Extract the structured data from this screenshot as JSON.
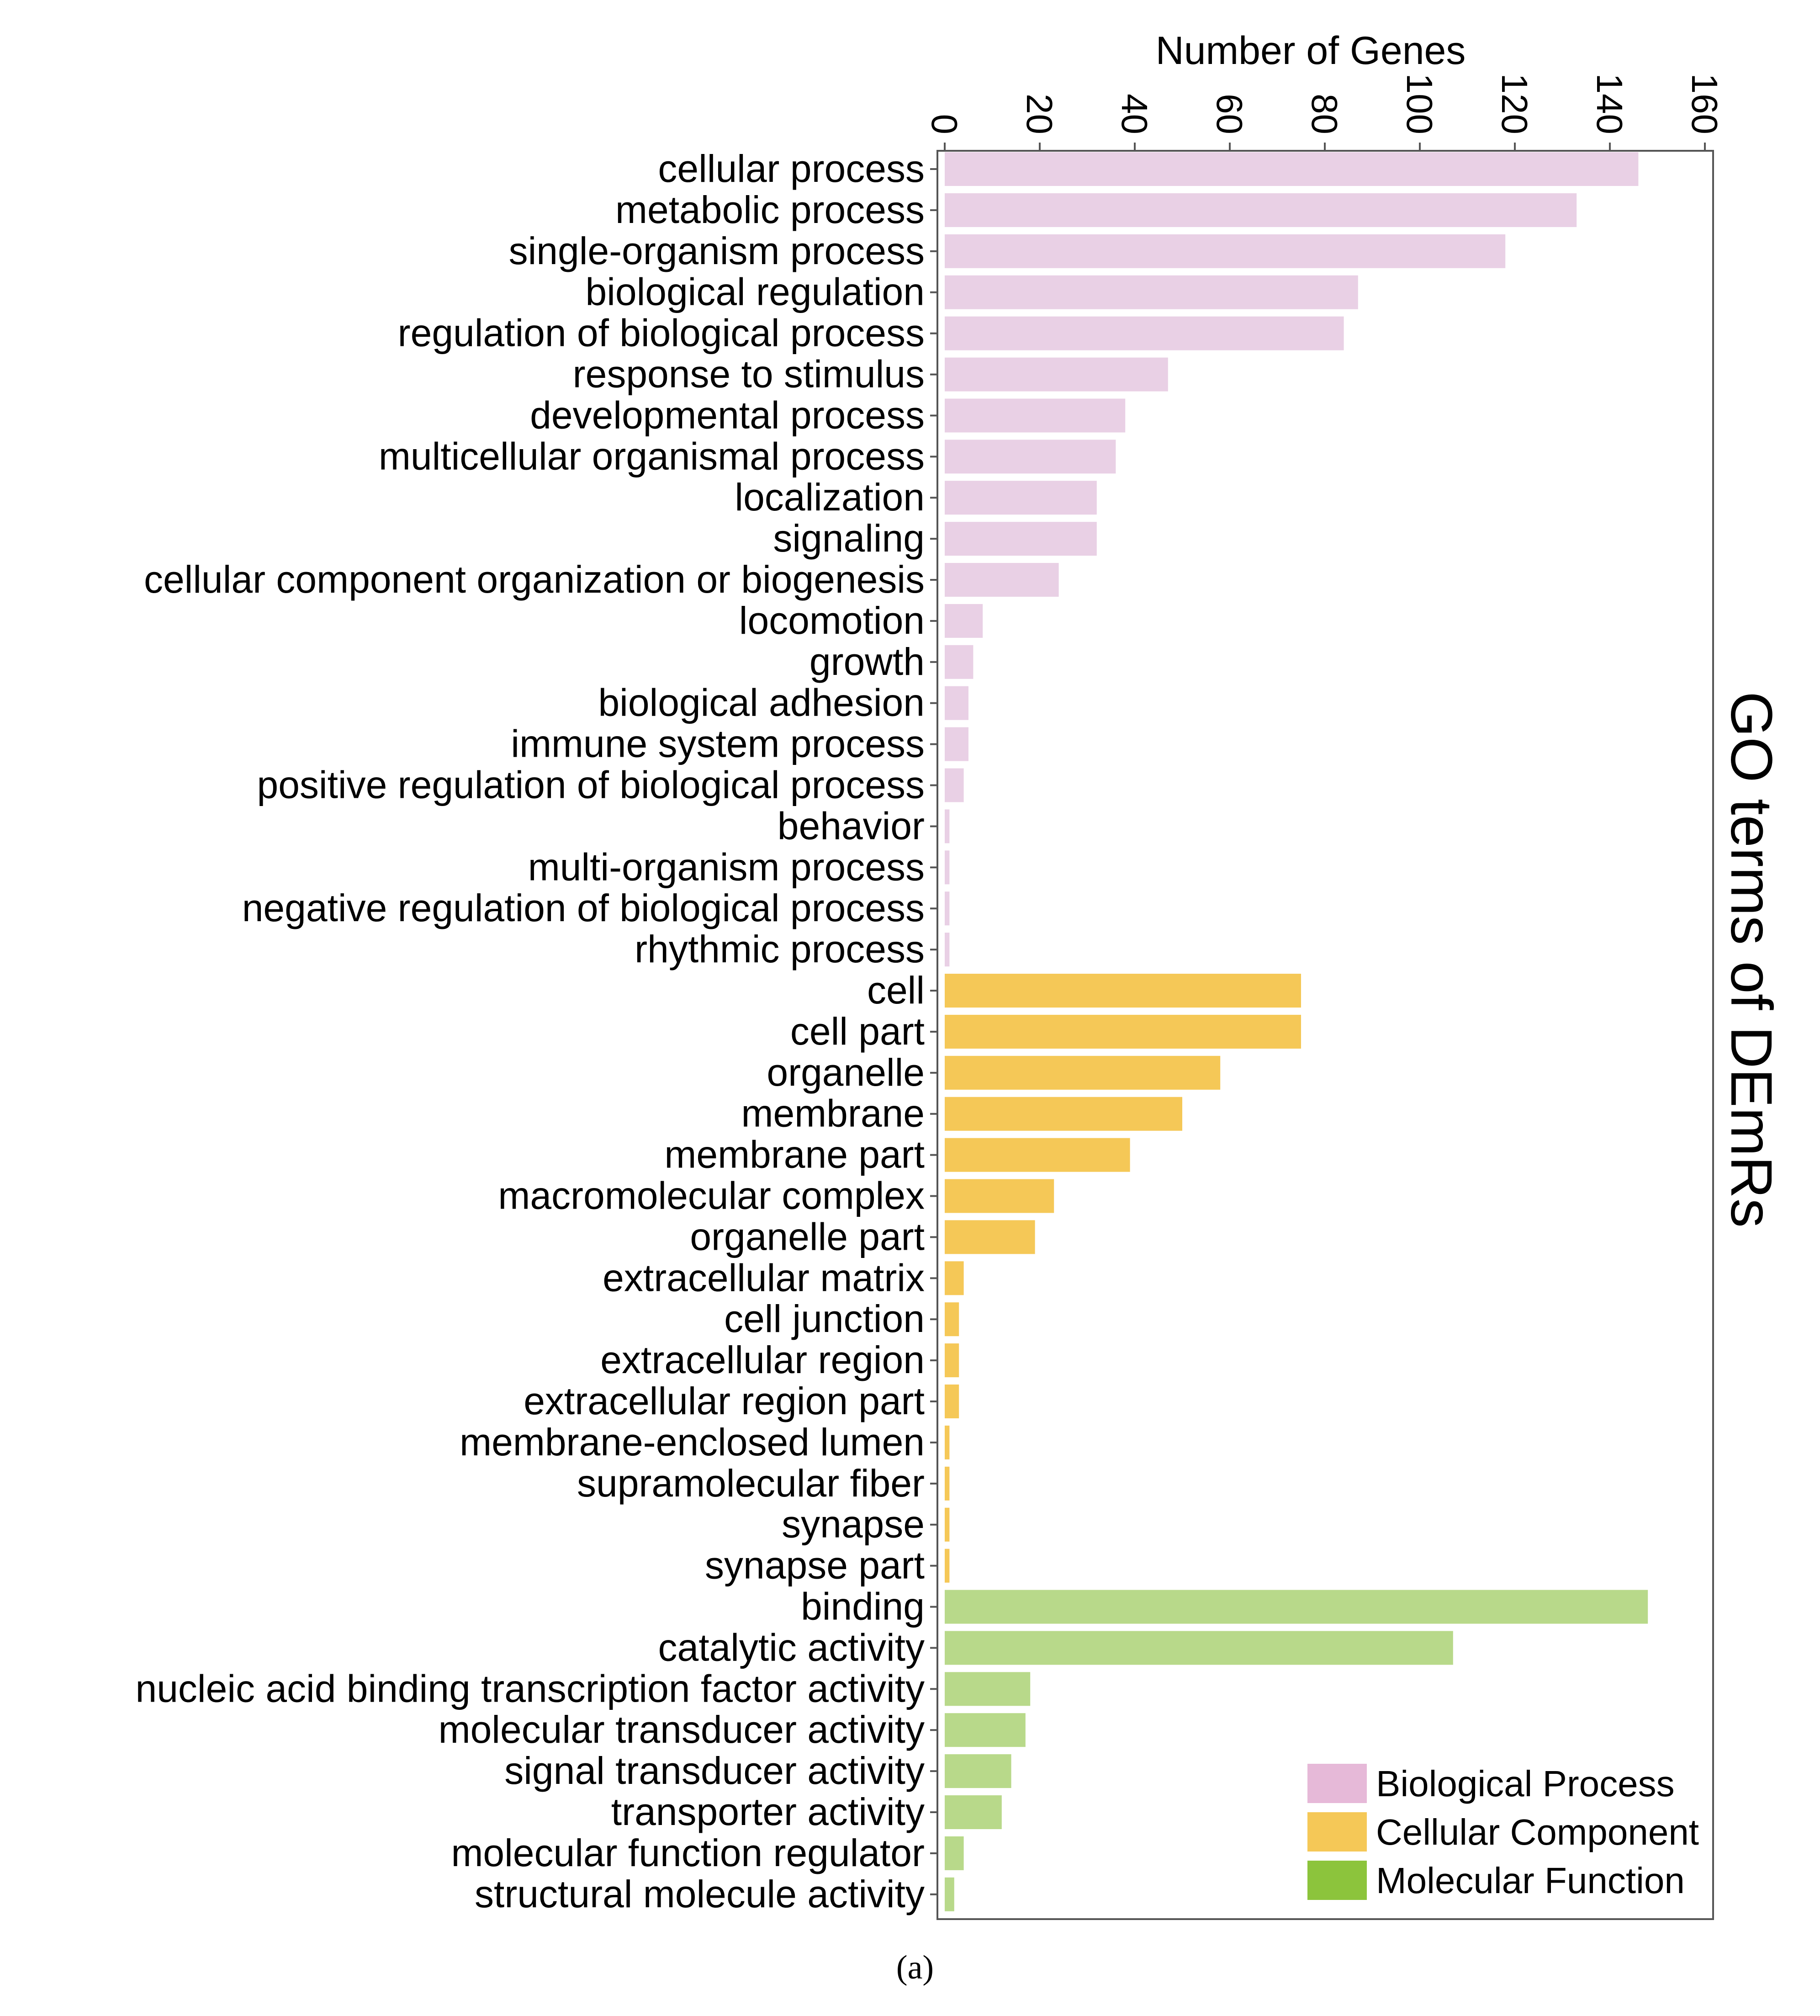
{
  "chart_data": {
    "type": "bar",
    "orientation": "horizontal",
    "xlabel": "Number of Genes",
    "side_title": "GO terms of DEmRs",
    "caption": "(a)",
    "xlim": [
      0,
      163
    ],
    "xticks": [
      "0",
      "20",
      "40",
      "60",
      "80",
      "100",
      "120",
      "140",
      "160"
    ],
    "xtick_values": [
      0,
      20,
      40,
      60,
      80,
      100,
      120,
      140,
      160
    ],
    "legend_position": "bottom-right",
    "colors": {
      "Biological Process": "#e9d0e5",
      "Cellular Component": "#f5c857",
      "Molecular Function": "#b8d98a"
    },
    "legend": [
      {
        "name": "Biological Process",
        "color": "#e6b9d8"
      },
      {
        "name": "Cellular Component",
        "color": "#f5c857"
      },
      {
        "name": "Molecular Function",
        "color": "#8cc43c"
      }
    ],
    "categories": [
      "cellular process",
      "metabolic process",
      "single-organism process",
      "biological regulation",
      "regulation of biological process",
      "response to stimulus",
      "developmental process",
      "multicellular organismal process",
      "localization",
      "signaling",
      "cellular component organization or biogenesis",
      "locomotion",
      "growth",
      "biological adhesion",
      "immune system process",
      "positive regulation of biological process",
      "behavior",
      "multi-organism process",
      "negative regulation of biological process",
      "rhythmic process",
      "cell",
      "cell part",
      "organelle",
      "membrane",
      "membrane part",
      "macromolecular complex",
      "organelle part",
      "extracellular matrix",
      "cell junction",
      "extracellular region",
      "extracellular region part",
      "membrane-enclosed lumen",
      "supramolecular fiber",
      "synapse",
      "synapse part",
      "binding",
      "catalytic activity",
      "nucleic acid binding transcription factor activity",
      "molecular transducer activity",
      "signal transducer activity",
      "transporter activity",
      "molecular function regulator",
      "structural molecule activity"
    ],
    "values": [
      146,
      133,
      118,
      87,
      84,
      47,
      38,
      36,
      32,
      32,
      24,
      8,
      6,
      5,
      5,
      4,
      1,
      1,
      1,
      1,
      75,
      75,
      58,
      50,
      39,
      23,
      19,
      4,
      3,
      3,
      3,
      1,
      1,
      1,
      1,
      148,
      107,
      18,
      17,
      14,
      12,
      4,
      2
    ],
    "groups": [
      "Biological Process",
      "Biological Process",
      "Biological Process",
      "Biological Process",
      "Biological Process",
      "Biological Process",
      "Biological Process",
      "Biological Process",
      "Biological Process",
      "Biological Process",
      "Biological Process",
      "Biological Process",
      "Biological Process",
      "Biological Process",
      "Biological Process",
      "Biological Process",
      "Biological Process",
      "Biological Process",
      "Biological Process",
      "Biological Process",
      "Cellular Component",
      "Cellular Component",
      "Cellular Component",
      "Cellular Component",
      "Cellular Component",
      "Cellular Component",
      "Cellular Component",
      "Cellular Component",
      "Cellular Component",
      "Cellular Component",
      "Cellular Component",
      "Cellular Component",
      "Cellular Component",
      "Cellular Component",
      "Cellular Component",
      "Molecular Function",
      "Molecular Function",
      "Molecular Function",
      "Molecular Function",
      "Molecular Function",
      "Molecular Function",
      "Molecular Function",
      "Molecular Function"
    ]
  }
}
